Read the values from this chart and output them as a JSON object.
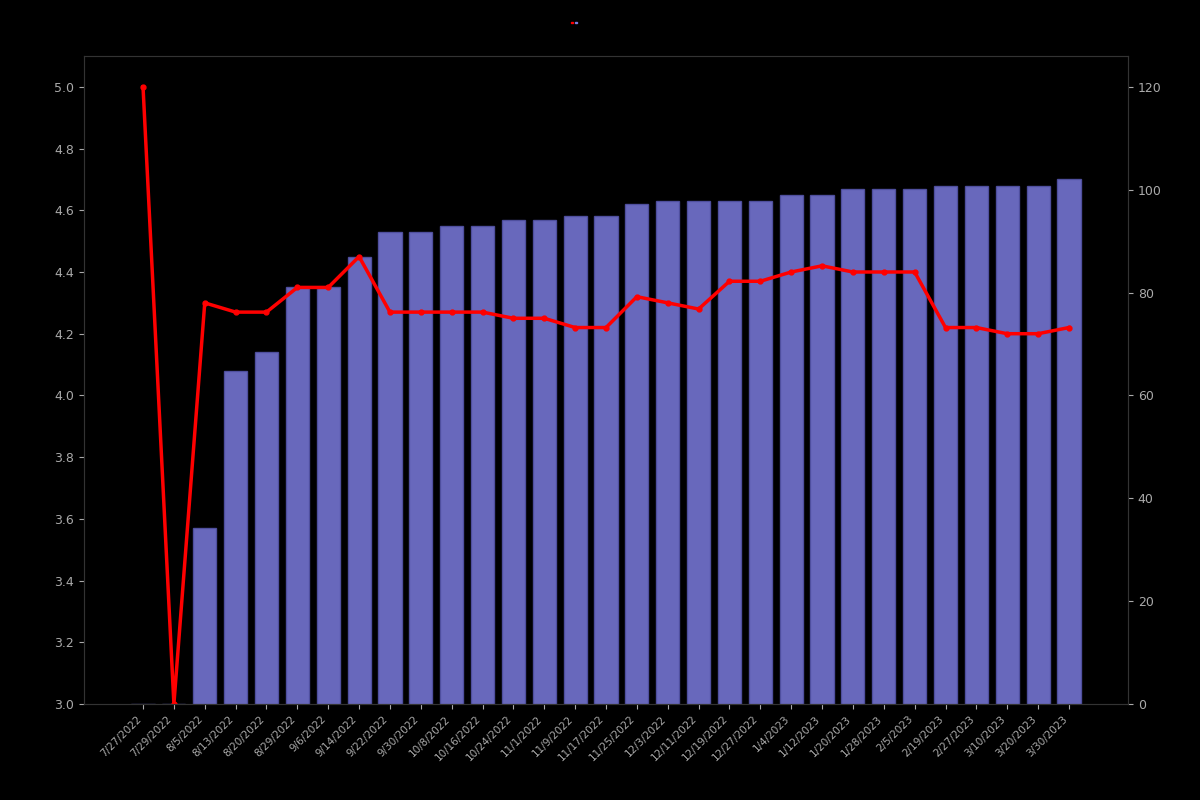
{
  "dates": [
    "7/27/2022",
    "7/29/2022",
    "8/5/2022",
    "8/13/2022",
    "8/20/2022",
    "8/29/2022",
    "9/6/2022",
    "9/14/2022",
    "9/22/2022",
    "9/30/2022",
    "10/8/2022",
    "10/16/2022",
    "10/24/2022",
    "11/1/2022",
    "11/9/2022",
    "11/17/2022",
    "11/25/2022",
    "12/3/2022",
    "12/11/2022",
    "12/19/2022",
    "12/27/2022",
    "1/4/2023",
    "1/12/2023",
    "1/20/2023",
    "1/28/2023",
    "2/5/2023",
    "2/19/2023",
    "2/27/2023",
    "3/10/2023",
    "3/20/2023",
    "3/30/2023"
  ],
  "bar_values": [
    3.0,
    3.0,
    3.57,
    4.08,
    4.14,
    4.35,
    4.35,
    4.45,
    4.53,
    4.53,
    4.55,
    4.55,
    4.57,
    4.57,
    4.58,
    4.58,
    4.62,
    4.63,
    4.63,
    4.63,
    4.63,
    4.65,
    4.65,
    4.67,
    4.67,
    4.67,
    4.68,
    4.68,
    4.68,
    4.68,
    4.7
  ],
  "line_values": [
    5.0,
    3.0,
    4.3,
    4.27,
    4.27,
    4.35,
    4.35,
    4.45,
    4.27,
    4.27,
    4.27,
    4.27,
    4.25,
    4.25,
    4.22,
    4.22,
    4.32,
    4.3,
    4.28,
    4.37,
    4.37,
    4.4,
    4.42,
    4.4,
    4.4,
    4.4,
    4.22,
    4.22,
    4.2,
    4.2,
    4.22
  ],
  "bar_color": "#7b7bde",
  "bar_edge_color": "#5555aa",
  "line_color": "#ff0000",
  "background_color": "#000000",
  "text_color": "#aaaaaa",
  "ylim_left": [
    3.0,
    5.1
  ],
  "ylim_right": [
    0,
    126
  ],
  "yticks_left": [
    3.0,
    3.2,
    3.4,
    3.6,
    3.8,
    4.0,
    4.2,
    4.4,
    4.6,
    4.8,
    5.0
  ],
  "yticks_right": [
    0,
    20,
    40,
    60,
    80,
    100,
    120
  ],
  "line_width": 2.5,
  "marker": "o",
  "marker_size": 3.5
}
